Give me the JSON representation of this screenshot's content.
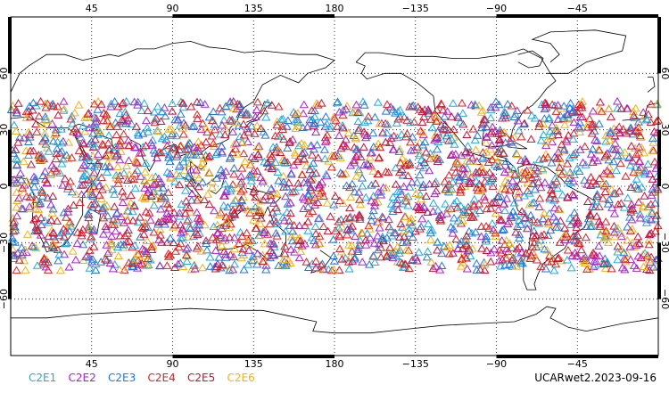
{
  "map": {
    "projection": "cylindrical-equidistant",
    "center_longitude": 180,
    "lon_range": [
      0,
      360
    ],
    "lat_range": [
      -90,
      90
    ],
    "top_lon_labels": [
      "45",
      "90",
      "135",
      "180",
      "−135",
      "−90",
      "−45"
    ],
    "bottom_lon_labels": [
      "45",
      "90",
      "135",
      "180",
      "−135",
      "−90",
      "−45"
    ],
    "lon_tick_values": [
      45,
      90,
      135,
      180,
      225,
      270,
      315
    ],
    "lat_labels": [
      "60",
      "30",
      "0",
      "−30",
      "−60"
    ],
    "lat_tick_values": [
      60,
      30,
      0,
      -30,
      -60
    ],
    "grid": true,
    "grid_style": "dotted",
    "marker": "open-triangle",
    "observation_band_lat": [
      -45,
      45
    ]
  },
  "legend": {
    "items": [
      {
        "label": "C2E1",
        "color": "#22aadd"
      },
      {
        "label": "C2E2",
        "color": "#aa22cc"
      },
      {
        "label": "C2E3",
        "color": "#2277dd"
      },
      {
        "label": "C2E4",
        "color": "#dd2222"
      },
      {
        "label": "C2E5",
        "color": "#cc1133"
      },
      {
        "label": "C2E6",
        "color": "#f2b21a"
      }
    ]
  },
  "caption": "UCARwet2.2023-09-16"
}
